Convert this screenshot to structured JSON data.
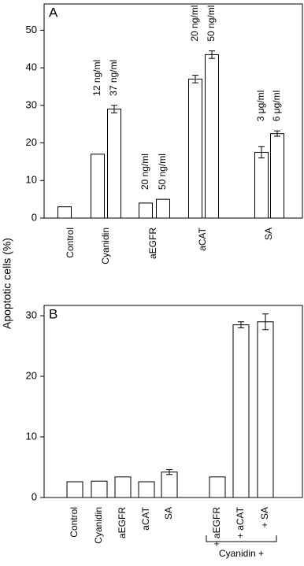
{
  "y_label": "Apoptotic cells (%)",
  "chart_data": [
    {
      "type": "bar",
      "panel": "A",
      "ylim": [
        0,
        57
      ],
      "yticks": [
        0,
        10,
        20,
        30,
        40,
        50
      ],
      "groups": [
        {
          "name": "Control",
          "bars": [
            {
              "value": 3
            }
          ]
        },
        {
          "name": "Cyanidin",
          "bars": [
            {
              "label": "12 ng/ml",
              "value": 17
            },
            {
              "label": "37 ng/ml",
              "value": 29,
              "error": 1
            }
          ]
        },
        {
          "name": "aEGFR",
          "bars": [
            {
              "label": "20 ng/ml",
              "value": 4
            },
            {
              "label": "50 ng/ml",
              "value": 5
            }
          ]
        },
        {
          "name": "aCAT",
          "bars": [
            {
              "label": "20 ng/ml",
              "value": 37,
              "error": 1
            },
            {
              "label": "50 ng/ml",
              "value": 43.5,
              "error": 1
            }
          ]
        },
        {
          "name": "SA",
          "bars": [
            {
              "label": "3 μg/ml",
              "value": 17.5,
              "error": 1.5
            },
            {
              "label": "6 μg/ml",
              "value": 22.5,
              "error": 0.7
            }
          ]
        }
      ]
    },
    {
      "type": "bar",
      "panel": "B",
      "ylim": [
        0,
        31.7
      ],
      "yticks": [
        0,
        10,
        20,
        30
      ],
      "categories": [
        "Control",
        "Cyanidin",
        "aEGFR",
        "aCAT",
        "SA",
        "+ aEGFR",
        "+ aCAT",
        "+ SA"
      ],
      "values": [
        2.6,
        2.7,
        3.4,
        2.6,
        4.2,
        3.4,
        28.5,
        29
      ],
      "errors": [
        null,
        null,
        null,
        null,
        0.4,
        null,
        0.5,
        1.3
      ],
      "bracket_label": "Cyanidin +"
    }
  ]
}
